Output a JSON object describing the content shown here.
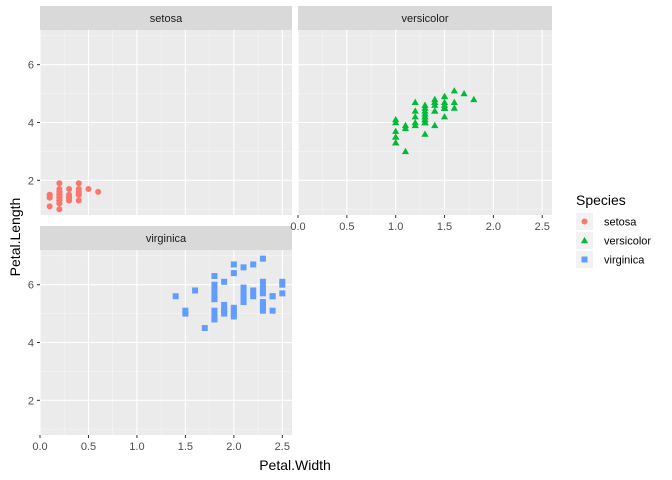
{
  "chart_data": {
    "type": "scatter",
    "facet_by": "Species",
    "xlabel": "Petal.Width",
    "ylabel": "Petal.Length",
    "xlim": [
      0,
      2.6
    ],
    "ylim": [
      0.8,
      7.2
    ],
    "x_ticks": [
      0,
      0.5,
      1,
      1.5,
      2,
      2.5
    ],
    "x_tick_labels": [
      "0.0",
      "0.5",
      "1.0",
      "1.5",
      "2.0",
      "2.5"
    ],
    "y_ticks": [
      2,
      4,
      6
    ],
    "y_tick_labels": [
      "2",
      "4",
      "6"
    ],
    "grid": true,
    "legend": {
      "title": "Species",
      "position": "right",
      "entries": [
        {
          "label": "setosa",
          "color": "#F8766D",
          "shape": "circle"
        },
        {
          "label": "versicolor",
          "color": "#00BA38",
          "shape": "triangle"
        },
        {
          "label": "virginica",
          "color": "#619CFF",
          "shape": "square"
        }
      ]
    },
    "panels": [
      {
        "label": "setosa",
        "color": "#F8766D",
        "shape": "circle",
        "points": [
          [
            0.2,
            1.4
          ],
          [
            0.2,
            1.4
          ],
          [
            0.2,
            1.3
          ],
          [
            0.2,
            1.5
          ],
          [
            0.2,
            1.4
          ],
          [
            0.4,
            1.7
          ],
          [
            0.3,
            1.4
          ],
          [
            0.2,
            1.5
          ],
          [
            0.2,
            1.4
          ],
          [
            0.1,
            1.5
          ],
          [
            0.2,
            1.5
          ],
          [
            0.2,
            1.6
          ],
          [
            0.1,
            1.4
          ],
          [
            0.1,
            1.1
          ],
          [
            0.2,
            1.2
          ],
          [
            0.4,
            1.5
          ],
          [
            0.4,
            1.3
          ],
          [
            0.3,
            1.4
          ],
          [
            0.3,
            1.7
          ],
          [
            0.3,
            1.5
          ],
          [
            0.2,
            1.7
          ],
          [
            0.4,
            1.5
          ],
          [
            0.2,
            1.0
          ],
          [
            0.5,
            1.7
          ],
          [
            0.2,
            1.9
          ],
          [
            0.2,
            1.6
          ],
          [
            0.4,
            1.6
          ],
          [
            0.2,
            1.5
          ],
          [
            0.2,
            1.4
          ],
          [
            0.2,
            1.6
          ],
          [
            0.2,
            1.6
          ],
          [
            0.4,
            1.5
          ],
          [
            0.1,
            1.5
          ],
          [
            0.2,
            1.4
          ],
          [
            0.2,
            1.5
          ],
          [
            0.2,
            1.2
          ],
          [
            0.2,
            1.3
          ],
          [
            0.1,
            1.4
          ],
          [
            0.2,
            1.3
          ],
          [
            0.2,
            1.5
          ],
          [
            0.3,
            1.3
          ],
          [
            0.3,
            1.3
          ],
          [
            0.2,
            1.3
          ],
          [
            0.6,
            1.6
          ],
          [
            0.4,
            1.9
          ],
          [
            0.3,
            1.4
          ],
          [
            0.2,
            1.6
          ],
          [
            0.2,
            1.4
          ],
          [
            0.2,
            1.5
          ],
          [
            0.2,
            1.4
          ]
        ]
      },
      {
        "label": "versicolor",
        "color": "#00BA38",
        "shape": "triangle",
        "points": [
          [
            1.4,
            4.7
          ],
          [
            1.5,
            4.5
          ],
          [
            1.5,
            4.9
          ],
          [
            1.3,
            4.0
          ],
          [
            1.5,
            4.6
          ],
          [
            1.3,
            4.5
          ],
          [
            1.6,
            4.7
          ],
          [
            1.0,
            3.3
          ],
          [
            1.3,
            4.6
          ],
          [
            1.4,
            3.9
          ],
          [
            1.0,
            3.5
          ],
          [
            1.5,
            4.2
          ],
          [
            1.0,
            4.0
          ],
          [
            1.4,
            4.7
          ],
          [
            1.3,
            3.6
          ],
          [
            1.4,
            4.4
          ],
          [
            1.5,
            4.5
          ],
          [
            1.0,
            4.1
          ],
          [
            1.5,
            4.5
          ],
          [
            1.1,
            3.9
          ],
          [
            1.8,
            4.8
          ],
          [
            1.3,
            4.0
          ],
          [
            1.5,
            4.9
          ],
          [
            1.2,
            4.7
          ],
          [
            1.3,
            4.3
          ],
          [
            1.4,
            4.4
          ],
          [
            1.4,
            4.8
          ],
          [
            1.7,
            5.0
          ],
          [
            1.5,
            4.5
          ],
          [
            1.0,
            3.5
          ],
          [
            1.1,
            3.8
          ],
          [
            1.0,
            3.7
          ],
          [
            1.2,
            3.9
          ],
          [
            1.6,
            5.1
          ],
          [
            1.5,
            4.5
          ],
          [
            1.6,
            4.5
          ],
          [
            1.5,
            4.7
          ],
          [
            1.3,
            4.4
          ],
          [
            1.3,
            4.1
          ],
          [
            1.3,
            4.0
          ],
          [
            1.2,
            4.4
          ],
          [
            1.4,
            4.6
          ],
          [
            1.2,
            4.0
          ],
          [
            1.0,
            3.3
          ],
          [
            1.3,
            4.2
          ],
          [
            1.2,
            4.2
          ],
          [
            1.3,
            4.2
          ],
          [
            1.3,
            4.3
          ],
          [
            1.1,
            3.0
          ],
          [
            1.3,
            4.1
          ]
        ]
      },
      {
        "label": "virginica",
        "color": "#619CFF",
        "shape": "square",
        "points": [
          [
            2.5,
            6.0
          ],
          [
            1.9,
            5.1
          ],
          [
            2.1,
            5.9
          ],
          [
            1.8,
            5.6
          ],
          [
            2.2,
            5.8
          ],
          [
            2.1,
            6.6
          ],
          [
            1.7,
            4.5
          ],
          [
            1.8,
            6.3
          ],
          [
            1.8,
            5.8
          ],
          [
            2.5,
            6.1
          ],
          [
            2.0,
            5.1
          ],
          [
            1.9,
            5.3
          ],
          [
            2.1,
            5.5
          ],
          [
            2.0,
            5.0
          ],
          [
            2.4,
            5.1
          ],
          [
            2.3,
            5.3
          ],
          [
            1.8,
            5.5
          ],
          [
            2.2,
            6.7
          ],
          [
            2.3,
            6.9
          ],
          [
            1.5,
            5.0
          ],
          [
            2.3,
            5.7
          ],
          [
            2.0,
            4.9
          ],
          [
            2.0,
            6.7
          ],
          [
            1.8,
            4.9
          ],
          [
            2.1,
            5.7
          ],
          [
            1.8,
            6.0
          ],
          [
            1.8,
            4.8
          ],
          [
            1.8,
            4.9
          ],
          [
            2.1,
            5.6
          ],
          [
            1.6,
            5.8
          ],
          [
            1.9,
            6.1
          ],
          [
            2.0,
            6.4
          ],
          [
            2.2,
            5.6
          ],
          [
            1.5,
            5.1
          ],
          [
            1.4,
            5.6
          ],
          [
            2.3,
            6.1
          ],
          [
            2.4,
            5.6
          ],
          [
            1.8,
            5.5
          ],
          [
            1.8,
            4.8
          ],
          [
            2.1,
            5.4
          ],
          [
            2.4,
            5.6
          ],
          [
            2.3,
            5.1
          ],
          [
            1.9,
            5.1
          ],
          [
            2.3,
            5.9
          ],
          [
            2.5,
            5.7
          ],
          [
            2.3,
            5.2
          ],
          [
            1.9,
            5.0
          ],
          [
            2.0,
            5.2
          ],
          [
            2.3,
            5.4
          ],
          [
            1.8,
            5.1
          ]
        ]
      }
    ]
  }
}
